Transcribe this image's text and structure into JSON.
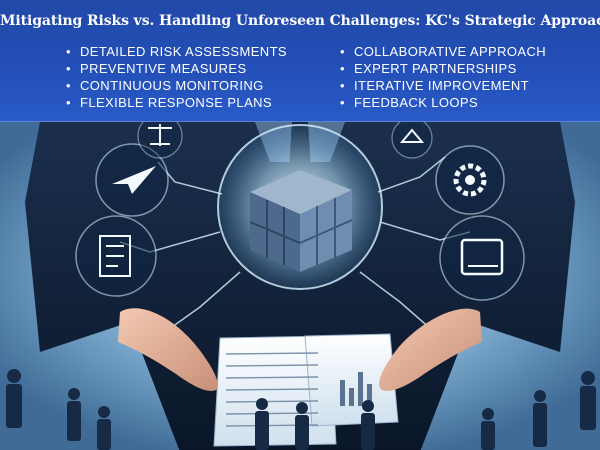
{
  "header": {
    "title": "Mitigating Risks vs. Handling Unforeseen Challenges: KC's Strategic Approach",
    "left_items": [
      "DETAILED RISK ASSESSMENTS",
      "PREVENTIVE MEASURES",
      "CONTINUOUS MONITORING",
      "FLEXIBLE RESPONSE PLANS"
    ],
    "right_items": [
      "COLLABORATIVE APPROACH",
      "EXPERT PARTNERSHIPS",
      "ITERATIVE IMPROVEMENT",
      "FEEDBACK LOOPS"
    ],
    "bullet": "•"
  },
  "illustration": {
    "icons": [
      "scales-icon",
      "paper-plane-icon",
      "gear-icon",
      "document-icon",
      "book-icon",
      "cube-icon",
      "chart-icon"
    ],
    "colors": {
      "header": "#234fb7",
      "glow": "#9fe3ff",
      "suit": "#0c1e3a"
    }
  }
}
